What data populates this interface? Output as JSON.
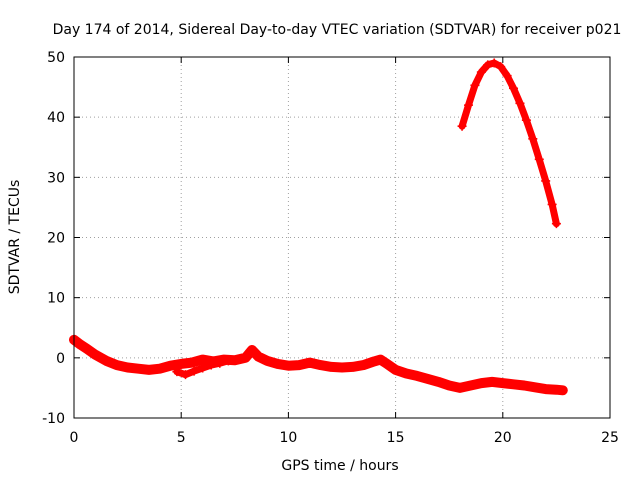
{
  "chart_data": {
    "type": "scatter",
    "title": "Day 174 of 2014, Sidereal Day-to-day VTEC variation (SDTVAR) for receiver p021",
    "xlabel": "GPS time / hours",
    "ylabel": "SDTVAR / TECUs",
    "xlim": [
      0,
      25
    ],
    "ylim": [
      -10,
      50
    ],
    "x_ticks": [
      0,
      5,
      10,
      15,
      20,
      25
    ],
    "y_ticks": [
      -10,
      0,
      10,
      20,
      30,
      40,
      50
    ],
    "grid": true,
    "marker": "+",
    "color": "#ff0000",
    "series": [
      {
        "name": "main-arc",
        "x": [
          0.0,
          0.3,
          0.6,
          1.0,
          1.5,
          2.0,
          2.5,
          3.0,
          3.5,
          4.0,
          4.5,
          5.0,
          5.5,
          6.0,
          6.5,
          7.0,
          7.5,
          8.0,
          8.3,
          8.6,
          9.0,
          9.5,
          10.0,
          10.5,
          11.0,
          11.5,
          12.0,
          12.5,
          13.0,
          13.5,
          14.0,
          14.3,
          14.6,
          15.0,
          15.5,
          16.0,
          16.5,
          17.0,
          17.5,
          18.0,
          18.5,
          19.0,
          19.5,
          20.0,
          20.5,
          21.0,
          21.5,
          22.0,
          22.5,
          22.8
        ],
        "y": [
          3.0,
          2.2,
          1.5,
          0.5,
          -0.5,
          -1.2,
          -1.6,
          -1.8,
          -2.0,
          -1.8,
          -1.3,
          -1.0,
          -0.8,
          -0.3,
          -0.6,
          -0.3,
          -0.4,
          0.0,
          1.3,
          0.2,
          -0.5,
          -1.0,
          -1.3,
          -1.2,
          -0.8,
          -1.2,
          -1.5,
          -1.6,
          -1.5,
          -1.2,
          -0.6,
          -0.3,
          -1.0,
          -2.0,
          -2.6,
          -3.0,
          -3.5,
          -4.0,
          -4.6,
          -5.0,
          -4.6,
          -4.2,
          -4.0,
          -4.2,
          -4.4,
          -4.6,
          -4.9,
          -5.2,
          -5.3,
          -5.4
        ]
      },
      {
        "name": "lower-branch",
        "x": [
          4.8,
          5.2,
          5.6,
          6.0,
          6.4,
          6.8,
          7.2
        ],
        "y": [
          -2.3,
          -2.8,
          -2.2,
          -1.7,
          -1.2,
          -0.9,
          -0.5
        ]
      },
      {
        "name": "upper-arc",
        "x": [
          18.1,
          18.4,
          18.7,
          19.0,
          19.3,
          19.6,
          19.9,
          20.2,
          20.5,
          20.8,
          21.1,
          21.4,
          21.7,
          22.0,
          22.3,
          22.5
        ],
        "y": [
          38.5,
          42.0,
          45.3,
          47.5,
          48.7,
          49.0,
          48.4,
          46.9,
          44.8,
          42.3,
          39.5,
          36.4,
          33.0,
          29.4,
          25.5,
          22.3
        ]
      }
    ]
  }
}
